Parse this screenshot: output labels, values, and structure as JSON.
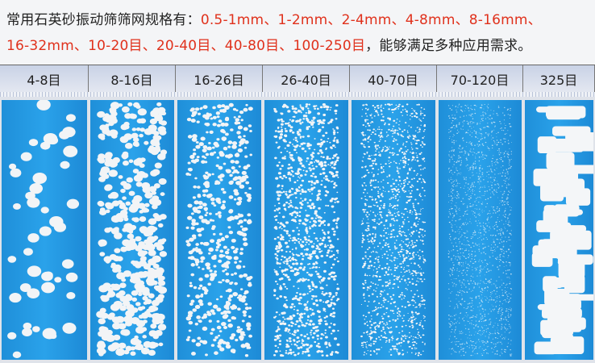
{
  "caption": {
    "line1_prefix": "常用石英砂振动筛筛网规格有：",
    "line1_specs": "0.5-1mm、1-2mm、2-4mm、4-8mm、8-16mm、",
    "line2_specs": "16-32mm、10-20目、20-40目、40-80目、100-250目",
    "line2_suffix": "，能够满足多种应用需求。"
  },
  "samples": [
    {
      "label": "4-8目"
    },
    {
      "label": "8-16目"
    },
    {
      "label": "16-26目"
    },
    {
      "label": "26-40目"
    },
    {
      "label": "40-70目"
    },
    {
      "label": "70-120目"
    },
    {
      "label": "325目"
    }
  ],
  "colors": {
    "accent_red": "#e0311c",
    "panel_blue": "#2aa2ea"
  }
}
